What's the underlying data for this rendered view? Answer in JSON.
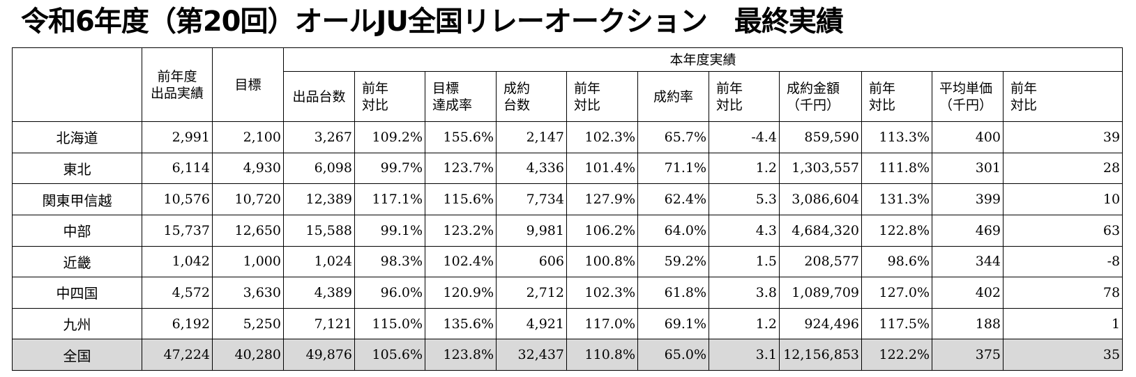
{
  "title": "令和6年度（第20回）オールJU全国リレーオークション　最終実績",
  "headers": {
    "prev_year_listings": [
      "前年度",
      "出品実績"
    ],
    "target": [
      "目標"
    ],
    "current_year_group": "本年度実績",
    "columns": [
      [
        "出品台数"
      ],
      [
        "前年",
        "対比"
      ],
      [
        "目標",
        "達成率"
      ],
      [
        "成約",
        "台数"
      ],
      [
        "前年",
        "対比"
      ],
      [
        "成約率"
      ],
      [
        "前年",
        "対比"
      ],
      [
        "成約金額",
        "（千円）"
      ],
      [
        "前年",
        "対比"
      ],
      [
        "平均単価",
        "（千円）"
      ],
      [
        "前年",
        "対比"
      ]
    ]
  },
  "rows": [
    {
      "region": "北海道",
      "values": [
        "2,991",
        "2,100",
        "3,267",
        "109.2%",
        "155.6%",
        "2,147",
        "102.3%",
        "65.7%",
        "-4.4",
        "859,590",
        "113.3%",
        "400",
        "39"
      ]
    },
    {
      "region": "東北",
      "values": [
        "6,114",
        "4,930",
        "6,098",
        "99.7%",
        "123.7%",
        "4,336",
        "101.4%",
        "71.1%",
        "1.2",
        "1,303,557",
        "111.8%",
        "301",
        "28"
      ]
    },
    {
      "region": "関東甲信越",
      "values": [
        "10,576",
        "10,720",
        "12,389",
        "117.1%",
        "115.6%",
        "7,734",
        "127.9%",
        "62.4%",
        "5.3",
        "3,086,604",
        "131.3%",
        "399",
        "10"
      ]
    },
    {
      "region": "中部",
      "values": [
        "15,737",
        "12,650",
        "15,588",
        "99.1%",
        "123.2%",
        "9,981",
        "106.2%",
        "64.0%",
        "4.3",
        "4,684,320",
        "122.8%",
        "469",
        "63"
      ]
    },
    {
      "region": "近畿",
      "values": [
        "1,042",
        "1,000",
        "1,024",
        "98.3%",
        "102.4%",
        "606",
        "100.8%",
        "59.2%",
        "1.5",
        "208,577",
        "98.6%",
        "344",
        "-8"
      ]
    },
    {
      "region": "中四国",
      "values": [
        "4,572",
        "3,630",
        "4,389",
        "96.0%",
        "120.9%",
        "2,712",
        "102.3%",
        "61.8%",
        "3.8",
        "1,089,709",
        "127.0%",
        "402",
        "78"
      ]
    },
    {
      "region": "九州",
      "values": [
        "6,192",
        "5,250",
        "7,121",
        "115.0%",
        "135.6%",
        "4,921",
        "117.0%",
        "69.1%",
        "1.2",
        "924,496",
        "117.5%",
        "188",
        "1"
      ]
    }
  ],
  "total": {
    "region": "全国",
    "values": [
      "47,224",
      "40,280",
      "49,876",
      "105.6%",
      "123.8%",
      "32,437",
      "110.8%",
      "65.0%",
      "3.1",
      "12,156,853",
      "122.2%",
      "375",
      "35"
    ]
  },
  "colors": {
    "total_row_bg": "#d9d9d9",
    "border": "#000000"
  }
}
